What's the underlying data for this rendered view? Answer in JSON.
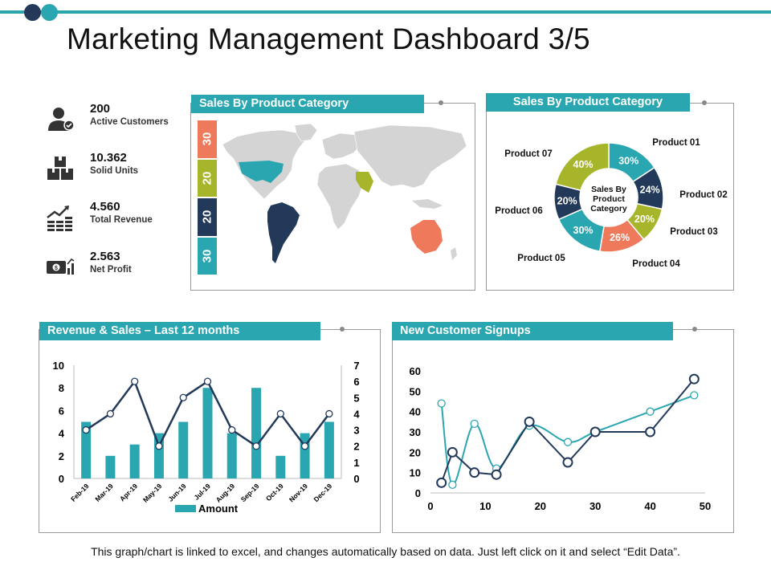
{
  "title": "Marketing Management Dashboard 3/5",
  "kpis": [
    {
      "value": "200",
      "label": "Active Customers",
      "icon": "user-check-icon"
    },
    {
      "value": "10.362",
      "label": "Solid Units",
      "icon": "boxes-icon"
    },
    {
      "value": "4.560",
      "label": "Total Revenue",
      "icon": "growth-coins-icon"
    },
    {
      "value": "2.563",
      "label": "Net Profit",
      "icon": "money-chart-icon"
    }
  ],
  "map_panel": {
    "title": "Sales By Product Category",
    "segments": [
      "30",
      "20",
      "20",
      "30"
    ],
    "segment_colors": [
      "#ef7a5b",
      "#a7b52a",
      "#22395a",
      "#2aa6b1"
    ]
  },
  "colors": {
    "teal": "#2aa6b1",
    "navy": "#22395a",
    "olive": "#a7b52a",
    "coral": "#ef7a5b",
    "land": "#d4d4d4"
  },
  "footer": "This graph/chart is linked to excel, and changes automatically  based on data. Just left click on it and select “Edit Data”.",
  "chart_data": [
    {
      "type": "pie",
      "title": "Sales By Product Category",
      "center_label": "Sales By Product Category",
      "center_lines": [
        "Sales By",
        "Product",
        "Category"
      ],
      "labels": [
        "Product 01",
        "Product 02",
        "Product 03",
        "Product 04",
        "Product 05",
        "Product 06",
        "Product 07"
      ],
      "value_labels": [
        "30%",
        "24%",
        "20%",
        "26%",
        "30%",
        "20%",
        "40%"
      ],
      "values": [
        30,
        24,
        20,
        26,
        30,
        20,
        40
      ],
      "colors": [
        "#2aa6b1",
        "#22395a",
        "#a7b52a",
        "#ef7a5b",
        "#2aa6b1",
        "#22395a",
        "#a7b52a"
      ]
    },
    {
      "type": "bar",
      "title": "Revenue & Sales – Last 12 months",
      "categories": [
        "Feb-19",
        "Mar-19",
        "Apr-19",
        "May-19",
        "Jun-19",
        "Jul-19",
        "Aug-19",
        "Sep-19",
        "Oct-19",
        "Nov-19",
        "Dec-19"
      ],
      "series": [
        {
          "name": "Amount",
          "type": "bar",
          "axis": "left",
          "values": [
            5,
            2,
            3,
            4,
            5,
            8,
            4,
            8,
            2,
            4,
            5
          ]
        },
        {
          "type": "line",
          "axis": "right",
          "values": [
            3,
            4,
            6,
            2,
            5,
            6,
            3,
            2,
            4,
            2,
            4
          ]
        }
      ],
      "ylim": [
        0,
        10
      ],
      "y_ticks": [
        "0",
        "2",
        "4",
        "6",
        "8",
        "10"
      ],
      "y2lim": [
        0,
        7
      ],
      "y2_ticks": [
        "0",
        "1",
        "2",
        "3",
        "4",
        "5",
        "6",
        "7"
      ],
      "legend": "bottom"
    },
    {
      "type": "line",
      "title": "New Customer Signups",
      "xlim": [
        0,
        50
      ],
      "ylim": [
        0,
        60
      ],
      "x_ticks": [
        "0",
        "10",
        "20",
        "30",
        "40",
        "50"
      ],
      "y_ticks": [
        "0",
        "10",
        "20",
        "30",
        "40",
        "50",
        "60"
      ],
      "series": [
        {
          "color": "#2aa6b1",
          "smooth": true,
          "points": [
            [
              2,
              44
            ],
            [
              4,
              4
            ],
            [
              8,
              34
            ],
            [
              12,
              12
            ],
            [
              18,
              33
            ],
            [
              25,
              25
            ],
            [
              30,
              30
            ],
            [
              40,
              40
            ],
            [
              48,
              48
            ]
          ]
        },
        {
          "color": "#22395a",
          "smooth": false,
          "points": [
            [
              2,
              5
            ],
            [
              4,
              20
            ],
            [
              8,
              10
            ],
            [
              12,
              9
            ],
            [
              18,
              35
            ],
            [
              25,
              15
            ],
            [
              30,
              30
            ],
            [
              40,
              30
            ],
            [
              48,
              56
            ]
          ]
        }
      ]
    }
  ]
}
